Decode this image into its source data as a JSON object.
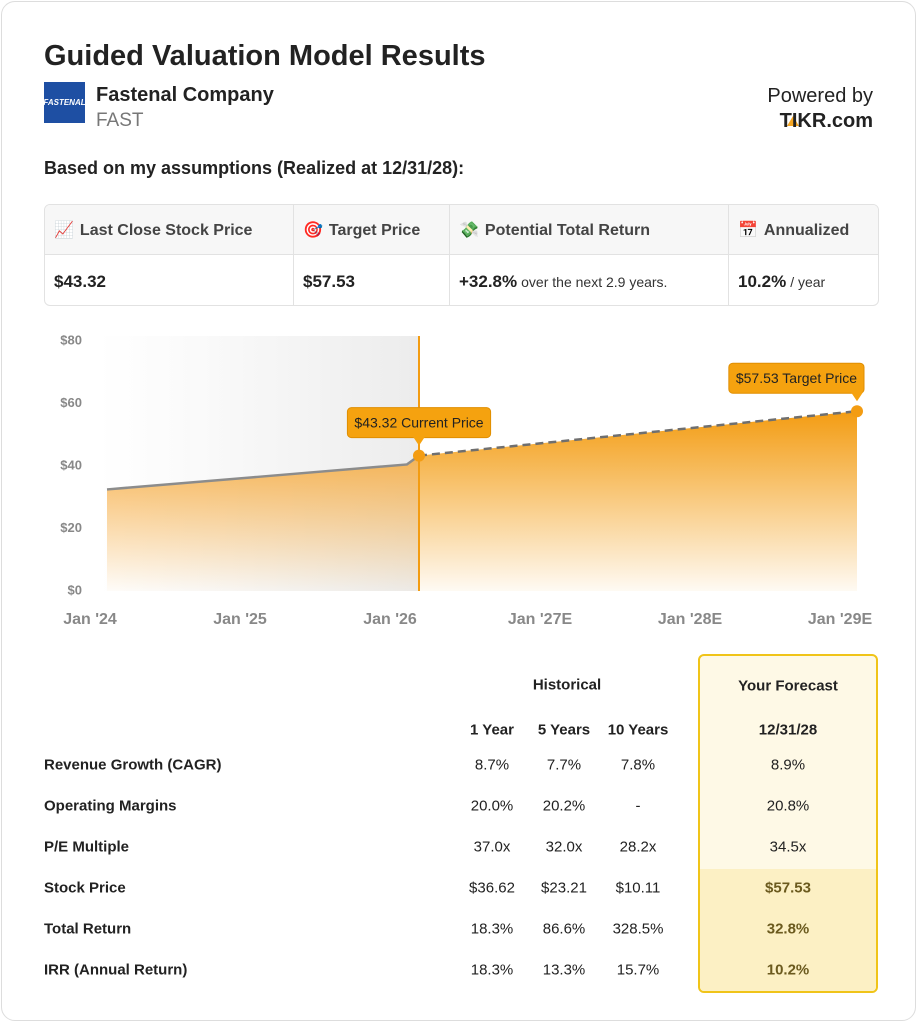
{
  "header": {
    "title": "Guided Valuation Model Results",
    "logo": "FASTENAL",
    "company": "Fastenal Company",
    "ticker": "FAST",
    "powered_by": "Powered by",
    "brand": "TIKR.com"
  },
  "summary": {
    "heading": "Based on my assumptions (Realized at 12/31/28):",
    "columns": [
      {
        "icon": "📈",
        "label": "Last Close Stock Price",
        "value": "$43.32"
      },
      {
        "icon": "🎯",
        "label": "Target Price",
        "value": "$57.53"
      },
      {
        "icon": "💸",
        "label": "Potential Total Return",
        "value": "+32.8%",
        "note": "over the next 2.9 years."
      },
      {
        "icon": "📅",
        "label": "Annualized",
        "value": "10.2%",
        "note": "/ year"
      }
    ]
  },
  "chart_data": {
    "type": "line",
    "xlim": [
      2024,
      2029
    ],
    "xticks": [
      {
        "value": 2024,
        "label": "Jan '24"
      },
      {
        "value": 2025,
        "label": "Jan '25"
      },
      {
        "value": 2026,
        "label": "Jan '26"
      },
      {
        "value": 2027,
        "label": "Jan '27E"
      },
      {
        "value": 2028,
        "label": "Jan '28E"
      },
      {
        "value": 2029,
        "label": "Jan '29E"
      }
    ],
    "ylim": [
      0,
      80
    ],
    "yticks": [
      {
        "value": 0,
        "label": "$0"
      },
      {
        "value": 20,
        "label": "$20"
      },
      {
        "value": 40,
        "label": "$40"
      },
      {
        "value": 60,
        "label": "$60"
      },
      {
        "value": 80,
        "label": "$80"
      }
    ],
    "series": [
      {
        "x": [
          2024,
          2025,
          2026,
          2026.08
        ],
        "values": [
          32.5,
          36.5,
          40.5,
          43.32
        ],
        "color": "#8c8c8c",
        "fill": "#f6a93a"
      },
      {
        "x": [
          2026.08,
          2029
        ],
        "values": [
          43.32,
          57.53
        ],
        "value_labels": [
          "$43.32 Current Price",
          "$57.53 Target Price"
        ],
        "color": "#6f6f6f",
        "dashed": true,
        "fill": "#f39c12"
      }
    ]
  },
  "table": {
    "group_historical": "Historical",
    "group_forecast": "Your Forecast",
    "columns": [
      "1 Year",
      "5 Years",
      "10 Years",
      "12/31/28"
    ],
    "rows": [
      [
        "Revenue Growth (CAGR)",
        "8.7%",
        "7.7%",
        "7.8%",
        "8.9%"
      ],
      [
        "Operating Margins",
        "20.0%",
        "20.2%",
        "-",
        "20.8%"
      ],
      [
        "P/E Multiple",
        "37.0x",
        "32.0x",
        "28.2x",
        "34.5x"
      ],
      [
        "Stock Price",
        "$36.62",
        "$23.21",
        "$10.11",
        "$57.53"
      ],
      [
        "Total Return",
        "18.3%",
        "86.6%",
        "328.5%",
        "32.8%"
      ],
      [
        "IRR (Annual Return)",
        "18.3%",
        "13.3%",
        "15.7%",
        "10.2%"
      ]
    ]
  }
}
